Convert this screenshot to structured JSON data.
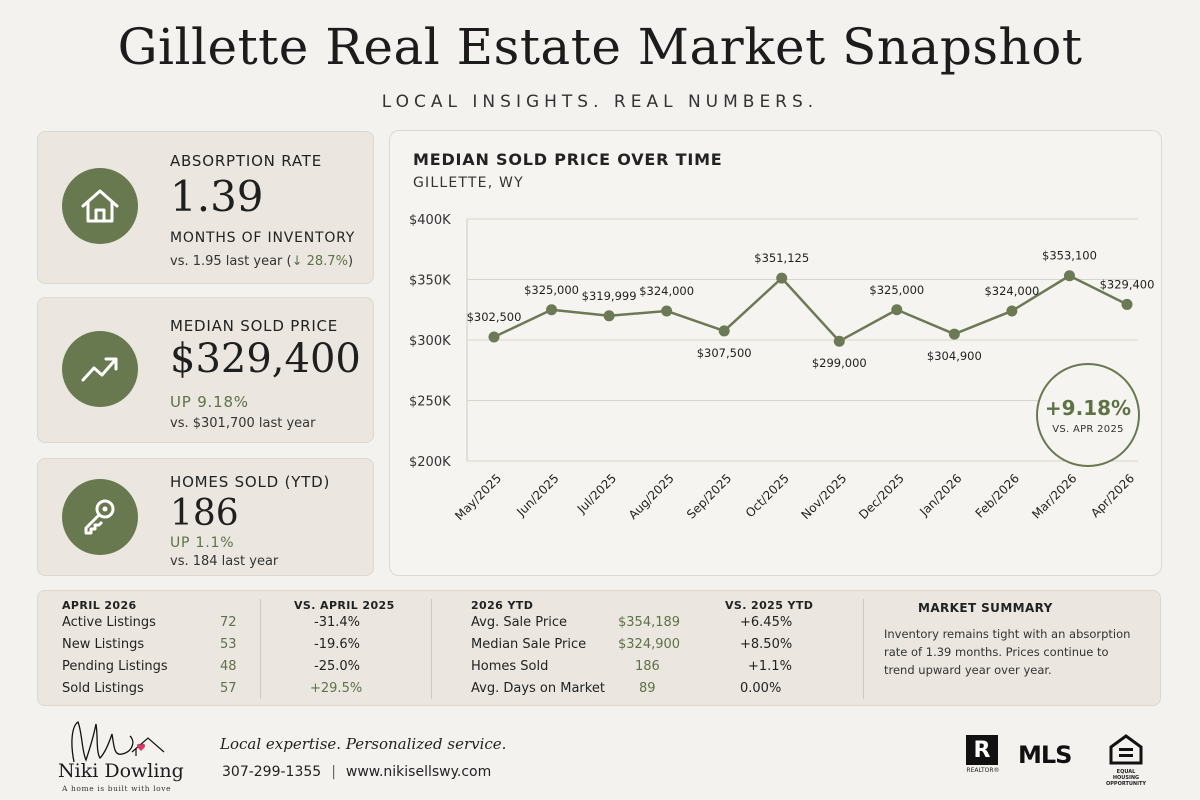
{
  "header": {
    "title": "Gillette Real Estate Market Snapshot",
    "subtitle": "LOCAL INSIGHTS. REAL NUMBERS."
  },
  "cards": {
    "absorption": {
      "icon": "house-icon",
      "label": "ABSORPTION RATE",
      "value": "1.39",
      "unit": "MONTHS OF INVENTORY",
      "compare_prefix": "vs. 1.95 last year (",
      "compare_change": "↓ 28.7%",
      "compare_suffix": ")"
    },
    "median": {
      "icon": "trend-up-icon",
      "label": "MEDIAN SOLD PRICE",
      "value": "$329,400",
      "change": "UP 9.18%",
      "compare": "vs. $301,700 last year"
    },
    "homes_sold": {
      "icon": "key-icon",
      "label": "HOMES SOLD (YTD)",
      "value": "186",
      "change": "UP 1.1%",
      "compare": "vs. 184 last year"
    }
  },
  "chart_data": {
    "type": "line",
    "title": "MEDIAN SOLD PRICE OVER TIME",
    "subtitle": "GILLETTE, WY",
    "categories": [
      "May/2025",
      "Jun/2025",
      "Jul/2025",
      "Aug/2025",
      "Sep/2025",
      "Oct/2025",
      "Nov/2025",
      "Dec/2025",
      "Jan/2026",
      "Feb/2026",
      "Mar/2026",
      "Apr/2026"
    ],
    "values": [
      302500,
      325000,
      319999,
      324000,
      307500,
      351125,
      299000,
      325000,
      304900,
      324000,
      353100,
      329400
    ],
    "data_labels": [
      "$302,500",
      "$325,000",
      "$319,999",
      "$324,000",
      "$307,500",
      "$351,125",
      "$299,000",
      "$325,000",
      "$304,900",
      "$324,000",
      "$353,100",
      "$329,400"
    ],
    "ylim": [
      200000,
      400000
    ],
    "yticks": [
      200000,
      250000,
      300000,
      350000,
      400000
    ],
    "ytick_labels": [
      "$200K",
      "$250K",
      "$300K",
      "$350K",
      "$400K"
    ],
    "grid": true,
    "color": "#6b7a55",
    "badge": {
      "value": "+9.18%",
      "label": "VS. APR 2025"
    }
  },
  "stats": {
    "april": {
      "header": "APRIL 2026",
      "compare_header": "VS. APRIL 2025",
      "rows": [
        {
          "label": "Active Listings",
          "value": "72",
          "change": "-31.4%"
        },
        {
          "label": "New Listings",
          "value": "53",
          "change": "-19.6%"
        },
        {
          "label": "Pending Listings",
          "value": "48",
          "change": "-25.0%"
        },
        {
          "label": "Sold Listings",
          "value": "57",
          "change": "+29.5%"
        }
      ]
    },
    "ytd": {
      "header": "2026 YTD",
      "compare_header": "VS. 2025 YTD",
      "rows": [
        {
          "label": "Avg. Sale Price",
          "value": "$354,189",
          "change": "+6.45%"
        },
        {
          "label": "Median Sale Price",
          "value": "$324,900",
          "change": "+8.50%"
        },
        {
          "label": "Homes Sold",
          "value": "186",
          "change": "+1.1%"
        },
        {
          "label": "Avg. Days on Market",
          "value": "89",
          "change": "0.00%"
        }
      ]
    },
    "summary": {
      "header": "MARKET SUMMARY",
      "text": "Inventory remains tight with an absorption rate of 1.39 months. Prices continue to trend upward year over year."
    }
  },
  "footer": {
    "agent_name": "Niki Dowling",
    "agent_tagline": "A home is built with love",
    "tagline": "Local expertise. Personalized service.",
    "phone": "307-299-1355",
    "separator": "|",
    "website": "www.nikisellswy.com",
    "realtor_label": "REALTOR®",
    "realtor_mark": "R",
    "mls": "MLS",
    "eho_label": "EQUAL HOUSING OPPORTUNITY"
  },
  "colors": {
    "accent": "#68794f",
    "accent_text": "#5e7246",
    "background": "#f4f2ee",
    "card": "#ebe7e0"
  }
}
